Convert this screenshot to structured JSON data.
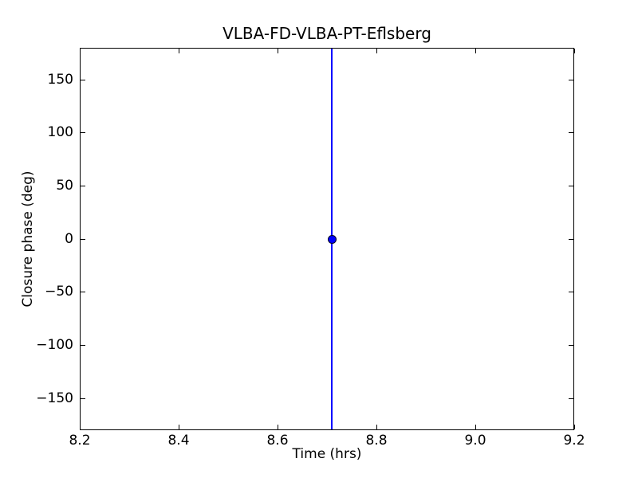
{
  "chart_data": {
    "type": "scatter",
    "title": "VLBA-FD-VLBA-PT-Eflsberg",
    "xlabel": "Time (hrs)",
    "ylabel": "Closure phase (deg)",
    "xlim": [
      8.2,
      9.2
    ],
    "ylim": [
      -180,
      180
    ],
    "x_ticks": [
      8.2,
      8.4,
      8.6,
      8.8,
      9.0,
      9.2
    ],
    "x_tick_labels": [
      "8.2",
      "8.4",
      "8.6",
      "8.8",
      "9.0",
      "9.2"
    ],
    "y_ticks": [
      150,
      100,
      50,
      0,
      -50,
      -100,
      -150
    ],
    "y_tick_labels": [
      "150",
      "100",
      "50",
      "0",
      "−50",
      "−100",
      "−150"
    ],
    "grid": false,
    "legend": null,
    "tick_style": "inward-all-four-spines",
    "series": [
      {
        "name": "closure-phase-points",
        "marker": "circle",
        "color": "#0000ff",
        "points": [
          {
            "x": 8.71,
            "y": 0
          }
        ],
        "error_bars": [
          {
            "x": 8.71,
            "y_top": 180,
            "y_bottom": -180,
            "clipped_to_axes": true
          }
        ]
      }
    ]
  }
}
